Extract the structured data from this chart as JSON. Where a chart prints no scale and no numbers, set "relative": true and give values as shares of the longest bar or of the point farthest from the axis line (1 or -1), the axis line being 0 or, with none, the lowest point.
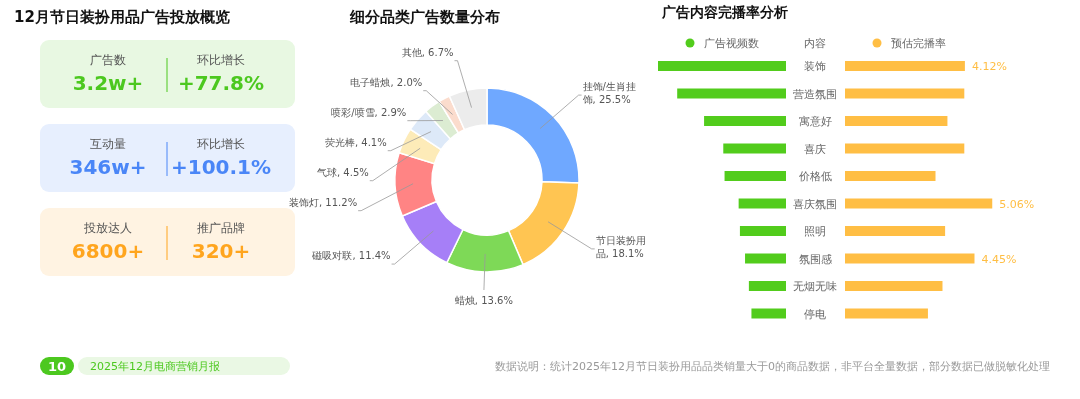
{
  "chart_data": [
    {
      "type": "other",
      "title": "12月节日装扮用品广告投放概览",
      "colors": [
        "#4cc81f",
        "#4a86f7",
        "#ffa51e"
      ],
      "annotations": [
        "广告数",
        "3.2w+",
        "环比增长",
        "+77.8%",
        "互动量",
        "346w+",
        "环比增长",
        "+100.1%",
        "投放达人",
        "6800+",
        "推广品牌",
        "320+",
        "10",
        "2025年12月电商营销月报",
        "数据说明：统计2025年12月节日装扮用品品类销量大于0的商品数据，非平台全量数据，部分数据已做脱敏化处理"
      ]
    },
    {
      "type": "donut",
      "title": "细分品类广告数量分布",
      "categories": [
        "挂饰/生肖挂饰",
        "节日装扮用品",
        "蜡烛",
        "磁吸对联",
        "装饰灯",
        "气球",
        "荧光棒",
        "喷彩/喷雪",
        "电子蜡烛",
        "其他"
      ],
      "values": [
        25.5,
        18.1,
        13.6,
        11.4,
        11.2,
        4.5,
        4.1,
        2.9,
        2.0,
        6.7
      ],
      "value_labels": [
        "25.5%",
        "18.1%",
        "13.6%",
        "11.4%",
        "11.2%",
        "4.5%",
        "4.1%",
        "2.9%",
        "2.0%",
        "6.7%"
      ],
      "colors": [
        "#6fa8ff",
        "#ffc552",
        "#7ed957",
        "#a67ff7",
        "#ff8484",
        "#fdebb8",
        "#dde9f8",
        "#dcecd2",
        "#fbdccd",
        "#ececec"
      ]
    },
    {
      "type": "bar",
      "title": "广告内容完播率分析",
      "orientation": "horizontal",
      "relative": true,
      "ylabel": "内容",
      "legend": "top",
      "categories": [
        "装饰",
        "营造氛围",
        "寓意好",
        "喜庆",
        "价格低",
        "喜庆氛围",
        "照明",
        "氛围感",
        "无烟无味",
        "停电"
      ],
      "series": [
        {
          "name": "广告视频数",
          "color": "#52cc1c",
          "values": [
            1,
            0.85,
            0.64,
            0.49,
            0.48,
            0.37,
            0.36,
            0.32,
            0.29,
            0.27
          ]
        }
      ]
    },
    {
      "type": "bar",
      "orientation": "horizontal",
      "legend": "top",
      "series": [
        {
          "name": "预估完播率",
          "color": "#ffbe44",
          "values": [
            4.12,
            4.1,
            3.52,
            4.1,
            3.11,
            5.06,
            3.44,
            4.45,
            3.35,
            2.85
          ],
          "value_labels": [
            "4.12%",
            null,
            null,
            null,
            null,
            "5.06%",
            null,
            "4.45%",
            null,
            null
          ]
        }
      ]
    }
  ]
}
